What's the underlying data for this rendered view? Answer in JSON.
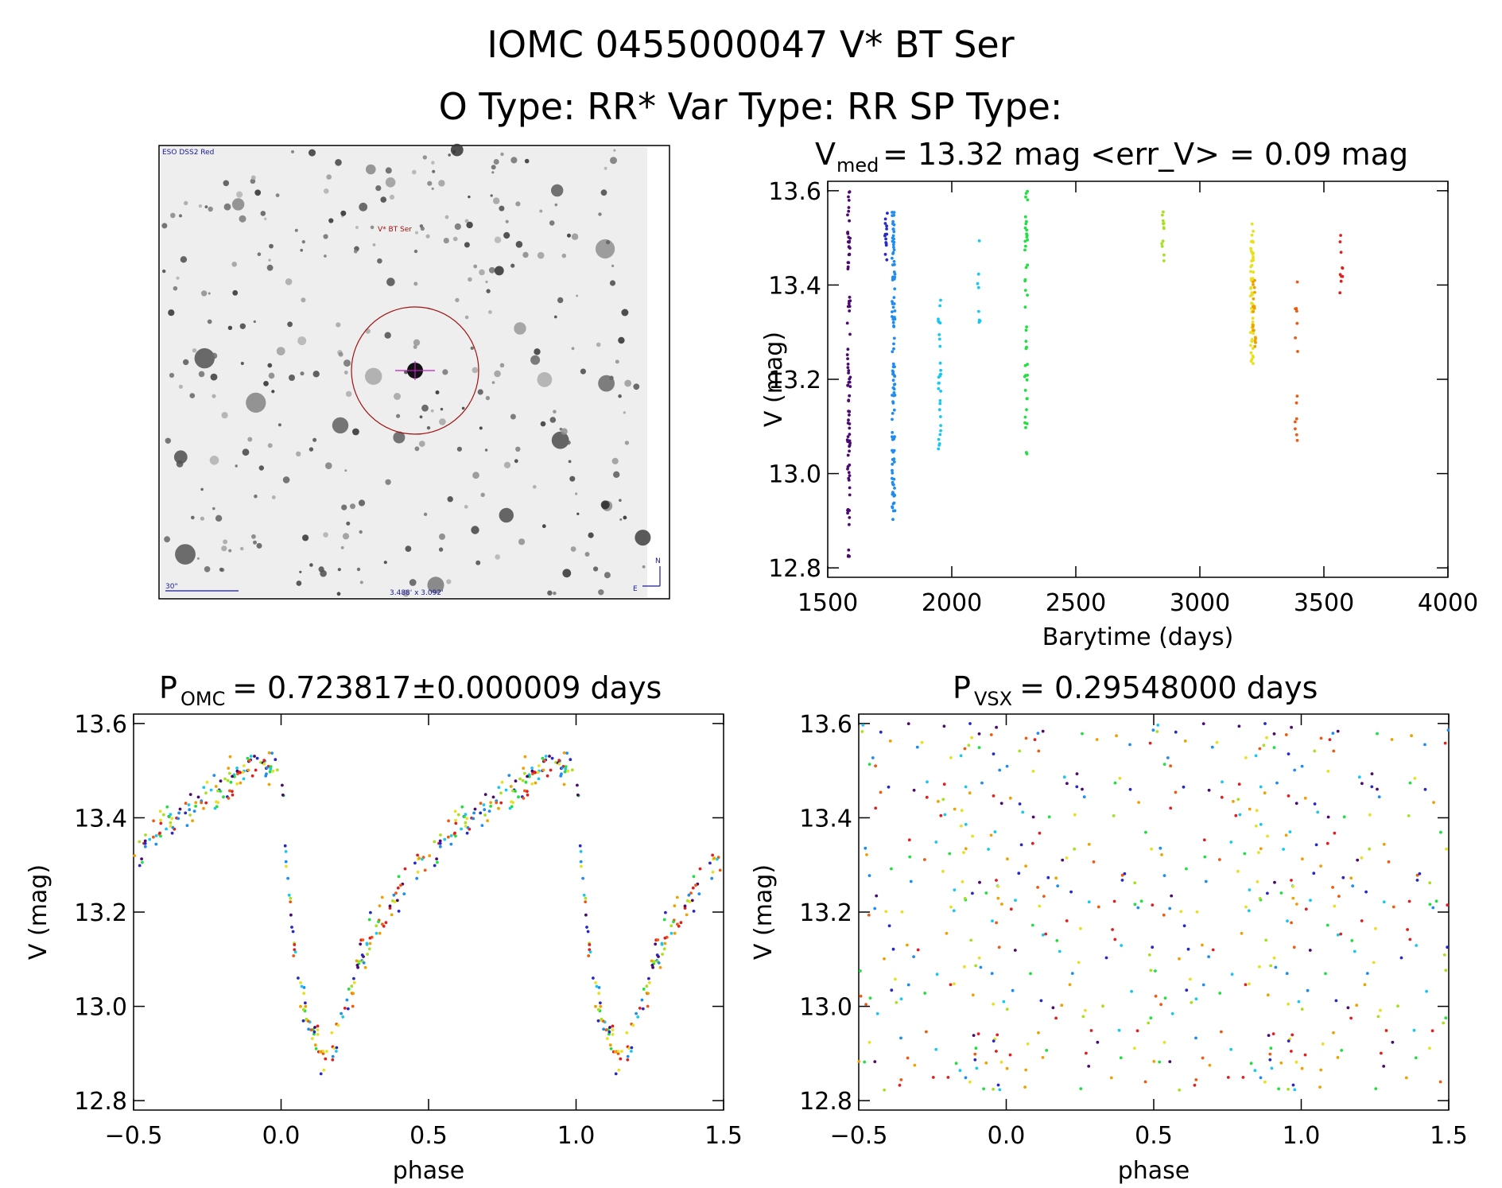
{
  "header": {
    "title_line1": "IOMC 0455000047   V* BT Ser",
    "title_line2": "O Type: RR*  Var Type: RR  SP Type:"
  },
  "finder_image": {
    "survey_label": "ESO DSS2 Red",
    "object_label": "V* BT Ser",
    "scale_label": "30\"",
    "north_label": "N",
    "east_label": "E",
    "coords_label": "3.488' x 3.092'"
  },
  "colors": {
    "epochs": [
      "#4b0a6e",
      "#2828c8",
      "#1e8cf0",
      "#18c8f0",
      "#20e040",
      "#a8e020",
      "#e8e020",
      "#f0a000",
      "#f05a10",
      "#e02020"
    ]
  },
  "chart_data": [
    {
      "id": "lightcurve",
      "type": "scatter",
      "title_main": "V",
      "title_sub": "med",
      "title_rest": " = 13.32 mag <err_V> = 0.09 mag",
      "xlabel": "Barytime (days)",
      "ylabel": "V (mag)",
      "xlim": [
        1500,
        4000
      ],
      "ylim": [
        13.62,
        12.78
      ],
      "xticks": [
        "1500",
        "2000",
        "2500",
        "3000",
        "3500",
        "4000"
      ],
      "xtick_values": [
        1500,
        2000,
        2500,
        3000,
        3500,
        4000
      ],
      "yticks": [
        "12.8",
        "13.0",
        "13.2",
        "13.4",
        "13.6"
      ],
      "ytick_values": [
        12.8,
        13.0,
        13.2,
        13.4,
        13.6
      ],
      "groups": [
        {
          "t": 1585,
          "v_min": 12.82,
          "v_max": 13.6,
          "n": 90,
          "color_index": 0
        },
        {
          "t": 1735,
          "v_min": 13.45,
          "v_max": 13.56,
          "n": 14,
          "color_index": 1
        },
        {
          "t": 1765,
          "v_min": 12.9,
          "v_max": 13.56,
          "n": 110,
          "color_index": 2
        },
        {
          "t": 1950,
          "v_min": 13.05,
          "v_max": 13.38,
          "n": 30,
          "color_index": 3
        },
        {
          "t": 2110,
          "v_min": 13.32,
          "v_max": 13.54,
          "n": 8,
          "color_index": 3
        },
        {
          "t": 2300,
          "v_min": 13.03,
          "v_max": 13.6,
          "n": 45,
          "color_index": 4
        },
        {
          "t": 2850,
          "v_min": 13.45,
          "v_max": 13.56,
          "n": 12,
          "color_index": 5
        },
        {
          "t": 3210,
          "v_min": 13.23,
          "v_max": 13.54,
          "n": 55,
          "color_index": 6
        },
        {
          "t": 3220,
          "v_min": 13.26,
          "v_max": 13.42,
          "n": 20,
          "color_index": 7
        },
        {
          "t": 3390,
          "v_min": 13.07,
          "v_max": 13.45,
          "n": 14,
          "color_index": 8
        },
        {
          "t": 3570,
          "v_min": 13.38,
          "v_max": 13.52,
          "n": 10,
          "color_index": 9
        }
      ]
    },
    {
      "id": "phase_omc",
      "type": "scatter",
      "title_main": "P",
      "title_sub": "OMC",
      "title_rest": " = 0.723817±0.000009 days",
      "xlabel": "phase",
      "ylabel": "V (mag)",
      "xlim": [
        -0.5,
        1.5
      ],
      "ylim": [
        13.62,
        12.78
      ],
      "xticks": [
        "−0.5",
        "0.0",
        "0.5",
        "1.0",
        "1.5"
      ],
      "xtick_values": [
        -0.5,
        0.0,
        0.5,
        1.0,
        1.5
      ],
      "yticks": [
        "12.8",
        "13.0",
        "13.2",
        "13.4",
        "13.6"
      ],
      "ytick_values": [
        12.8,
        13.0,
        13.2,
        13.4,
        13.6
      ],
      "template_phase": [
        0.0,
        0.03,
        0.06,
        0.1,
        0.15,
        0.2,
        0.3,
        0.45,
        0.6,
        0.75,
        0.9,
        1.0
      ],
      "template_mag": [
        13.5,
        13.2,
        13.05,
        12.95,
        12.88,
        12.95,
        13.15,
        13.3,
        13.38,
        13.44,
        13.52,
        13.5
      ],
      "scatter_mag": 0.06,
      "n_points": 260
    },
    {
      "id": "phase_vsx",
      "type": "scatter",
      "title_main": "P",
      "title_sub": "VSX",
      "title_rest": " = 0.29548000 days",
      "xlabel": "phase",
      "ylabel": "V (mag)",
      "xlim": [
        -0.5,
        1.5
      ],
      "ylim": [
        13.62,
        12.78
      ],
      "xticks": [
        "−0.5",
        "0.0",
        "0.5",
        "1.0",
        "1.5"
      ],
      "xtick_values": [
        -0.5,
        0.0,
        0.5,
        1.0,
        1.5
      ],
      "yticks": [
        "12.8",
        "13.0",
        "13.2",
        "13.4",
        "13.6"
      ],
      "ytick_values": [
        12.8,
        13.0,
        13.2,
        13.4,
        13.6
      ],
      "mag_range": [
        12.82,
        13.6
      ],
      "n_points": 260
    }
  ]
}
